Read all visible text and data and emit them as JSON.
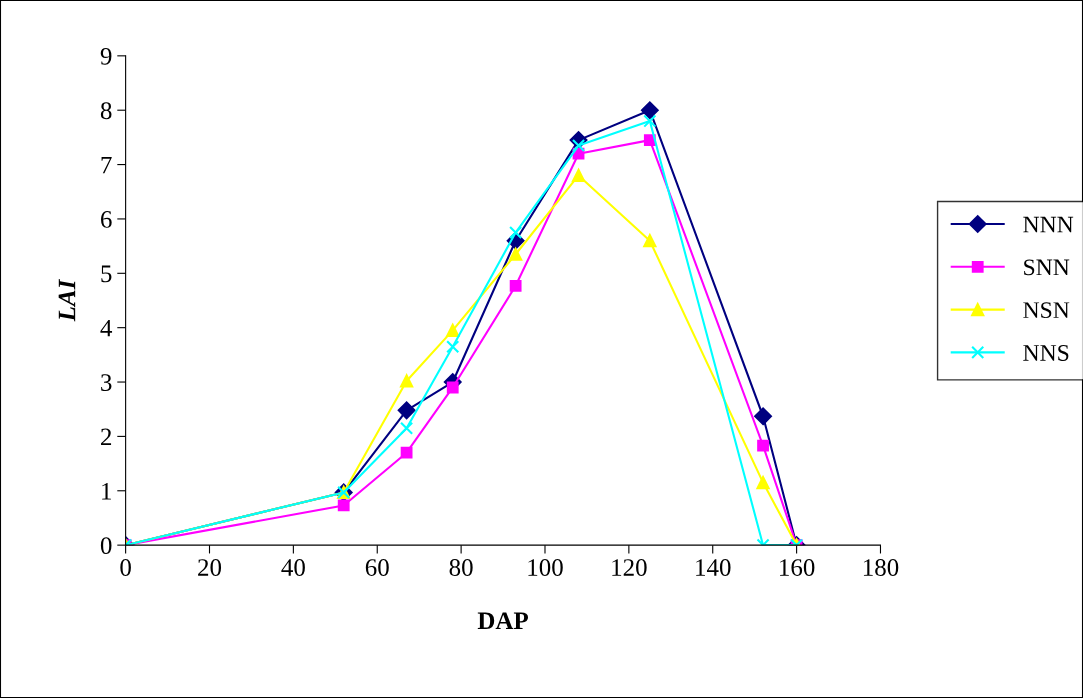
{
  "chart_data": {
    "type": "line",
    "xlabel": "DAP",
    "ylabel": "LAI",
    "x": [
      0,
      52,
      67,
      78,
      93,
      108,
      125,
      152,
      160
    ],
    "xlim": [
      0,
      180
    ],
    "xticks": [
      0,
      20,
      40,
      60,
      80,
      100,
      120,
      140,
      160,
      180
    ],
    "ylim": [
      0,
      9
    ],
    "yticks": [
      0,
      1,
      2,
      3,
      4,
      5,
      6,
      7,
      8,
      9
    ],
    "grid": false,
    "legend": "right",
    "series": [
      {
        "name": "NNN",
        "color": "#000080",
        "marker": "diamond",
        "values": [
          0,
          0.97,
          2.48,
          3.0,
          5.6,
          7.45,
          8.0,
          2.37,
          0
        ]
      },
      {
        "name": "SNN",
        "color": "#ff00ff",
        "marker": "square",
        "values": [
          0,
          0.73,
          1.7,
          2.9,
          4.77,
          7.2,
          7.45,
          1.83,
          0
        ]
      },
      {
        "name": "NSN",
        "color": "#ffff00",
        "marker": "triangle",
        "values": [
          0,
          0.97,
          3.02,
          3.95,
          5.35,
          6.8,
          5.6,
          1.15,
          0
        ]
      },
      {
        "name": "NNS",
        "color": "#00ffff",
        "marker": "cross",
        "values": [
          0,
          0.97,
          2.15,
          3.65,
          5.75,
          7.35,
          7.8,
          0,
          0
        ]
      }
    ]
  }
}
